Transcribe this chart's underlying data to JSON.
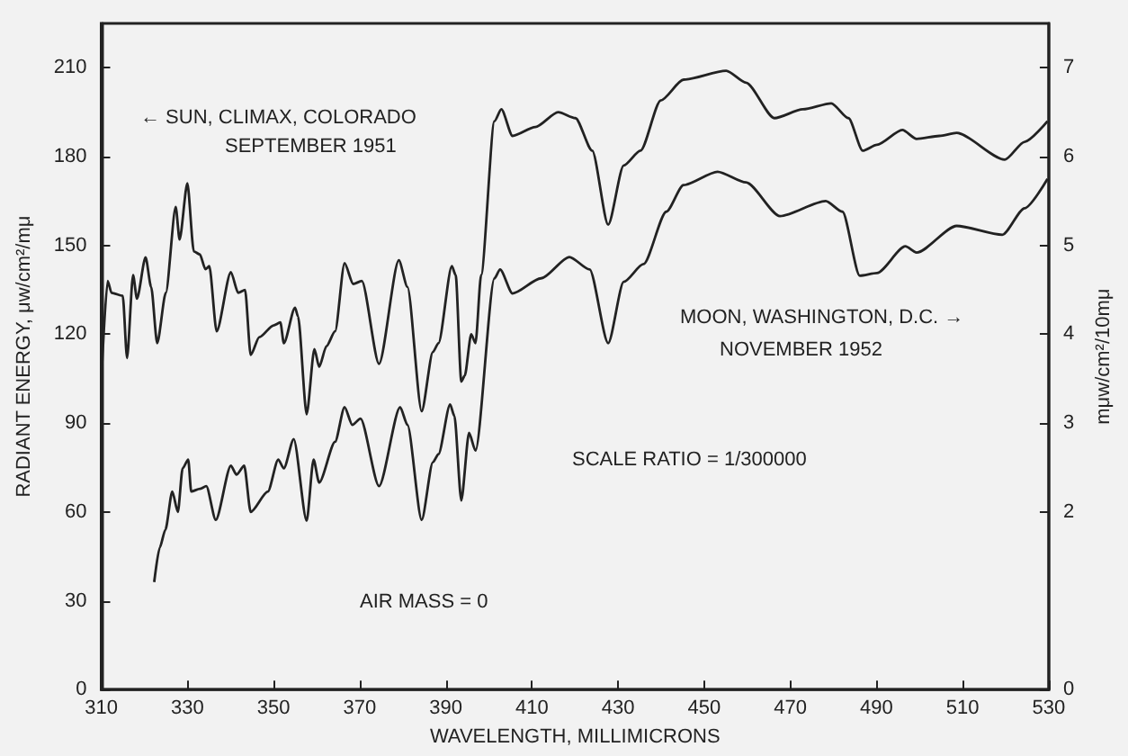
{
  "chart_data": {
    "type": "line",
    "xlabel": "WAVELENGTH, MILLIMICRONS",
    "ylabel": "RADIANT ENERGY, μw/cm²/mμ",
    "y2label": "mμw/cm²/10mμ",
    "xlim": [
      310,
      530
    ],
    "xticks": [
      310,
      330,
      350,
      370,
      390,
      410,
      430,
      450,
      470,
      490,
      510,
      530
    ],
    "ylim": [
      0,
      225
    ],
    "yticks": [
      0,
      30,
      60,
      90,
      120,
      150,
      180,
      210
    ],
    "y2lim": [
      0,
      7.5
    ],
    "y2ticks": [
      0,
      2,
      3,
      4,
      5,
      6,
      7
    ],
    "marker": "none",
    "line_style": "solid",
    "annotations": [
      "← SUN, CLIMAX, COLORADO",
      "SEPTEMBER 1951",
      "MOON, WASHINGTON, D.C. →",
      "NOVEMBER 1952",
      "SCALE RATIO = 1/300000",
      "AIR MASS = 0"
    ],
    "series": [
      {
        "color": "#222222",
        "x": [
          310,
          311.5,
          312.4,
          315,
          316,
          317.4,
          318.3,
          320.3,
          321.6,
          323,
          325,
          327.3,
          328.2,
          330,
          331.5,
          332.9,
          334.2,
          335.1,
          336.8,
          340.1,
          341.8,
          343.4,
          344.7,
          346.7,
          350,
          351.6,
          352.4,
          355,
          355.7,
          357.7,
          359.5,
          360.6,
          362.3,
          364.3,
          366.5,
          368.5,
          370.5,
          374.5,
          379.1,
          381.1,
          384.4,
          387,
          388.3,
          391.4,
          392.3,
          393.6,
          394.4,
          395.9,
          396.9,
          398.2,
          401.3,
          402.9,
          405.5,
          410.8,
          416.1,
          420.1,
          424,
          427.7,
          431.3,
          435.2,
          439.9,
          445.2,
          455.1,
          459.7,
          466.3,
          472.9,
          479.5,
          483.5,
          486.8,
          490.1,
          496,
          499.3,
          504.6,
          508.6,
          519.8,
          524.4,
          529.7
        ],
        "values": [
          104,
          138,
          134,
          133,
          112,
          140,
          132,
          146,
          136,
          117,
          134,
          163,
          152,
          171,
          148,
          147,
          142,
          143,
          121,
          141,
          134,
          135,
          113,
          119,
          123,
          124,
          117,
          129,
          126,
          93,
          115,
          109,
          116,
          121,
          144,
          137,
          138,
          110,
          145,
          136,
          94,
          114,
          117,
          143,
          140,
          104,
          106,
          120,
          117,
          140,
          192,
          196,
          187,
          190,
          195,
          193,
          182,
          157,
          177,
          182,
          199,
          206,
          209,
          205,
          193,
          196,
          198,
          193,
          182,
          184,
          189,
          186,
          187,
          188,
          179,
          185,
          192
        ]
      },
      {
        "color": "#222222",
        "axis": "y2",
        "x": [
          322.3,
          323.6,
          324.9,
          326.5,
          327.8,
          328.9,
          330.2,
          330.9,
          332.9,
          334.4,
          336.6,
          340.1,
          341.4,
          343.2,
          344.7,
          348.7,
          351.1,
          352.4,
          354.7,
          357.7,
          359.3,
          360.6,
          364.3,
          366.5,
          368.3,
          370.2,
          374.5,
          379.4,
          381.1,
          384.4,
          387,
          388.3,
          391,
          392,
          393.6,
          395.4,
          396.9,
          401.3,
          402.6,
          405.5,
          412.1,
          418.7,
          423.4,
          427.7,
          431.3,
          435.9,
          441.2,
          445.2,
          453.1,
          459.7,
          467.6,
          478.2,
          482.1,
          486.1,
          490.1,
          496.7,
          499.3,
          508.6,
          519.2,
          524.4,
          529.7
        ],
        "values": [
          1.21,
          1.6,
          1.8,
          2.23,
          2.0,
          2.49,
          2.59,
          2.23,
          2.26,
          2.29,
          1.91,
          2.52,
          2.42,
          2.52,
          2.0,
          2.23,
          2.59,
          2.49,
          2.82,
          1.9,
          2.59,
          2.33,
          2.79,
          3.18,
          2.98,
          3.05,
          2.29,
          3.18,
          2.98,
          1.91,
          2.56,
          2.65,
          3.21,
          3.08,
          2.13,
          2.89,
          2.69,
          4.63,
          4.73,
          4.46,
          4.63,
          4.87,
          4.73,
          3.9,
          4.59,
          4.79,
          5.38,
          5.68,
          5.83,
          5.71,
          5.33,
          5.5,
          5.38,
          4.66,
          4.69,
          4.99,
          4.92,
          5.22,
          5.12,
          5.42,
          5.75
        ]
      }
    ]
  }
}
